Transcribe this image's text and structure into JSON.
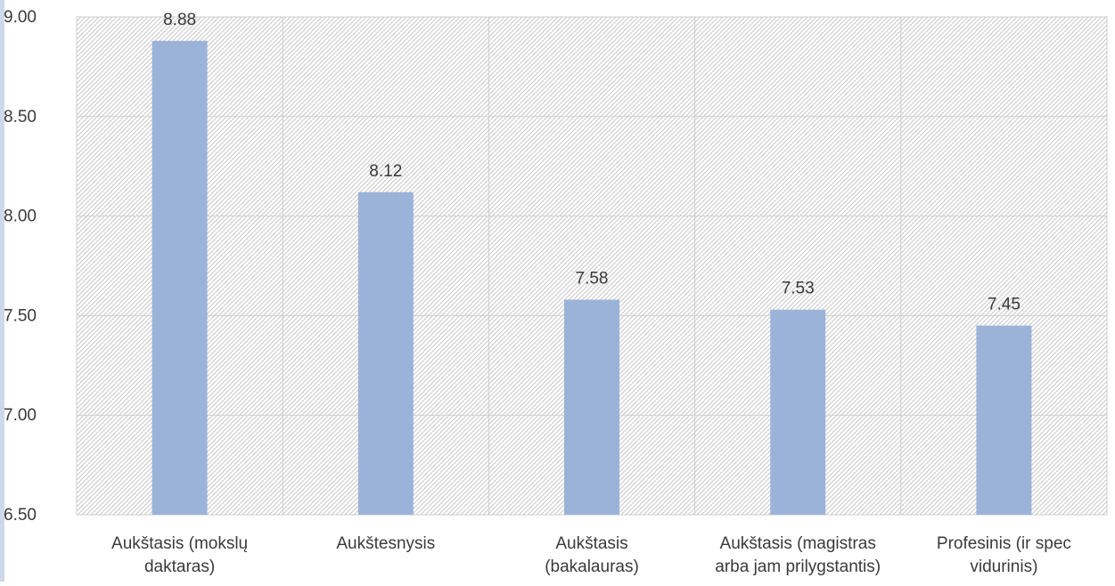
{
  "chart_data": {
    "type": "bar",
    "title": "",
    "xlabel": "",
    "ylabel": "",
    "categories": [
      [
        "Aukštasis (mokslų",
        "daktaras)"
      ],
      [
        "Aukštesnysis"
      ],
      [
        "Aukštasis",
        "(bakalauras)"
      ],
      [
        "Aukštasis (magistras",
        "arba jam prilygstantis)"
      ],
      [
        "Profesinis (ir spec",
        "vidurinis)"
      ]
    ],
    "values": [
      8.88,
      8.12,
      7.58,
      7.53,
      7.45
    ],
    "data_labels": [
      "8.88",
      "8.12",
      "7.58",
      "7.53",
      "7.45"
    ],
    "ylim": [
      6.5,
      9.0
    ],
    "yticks": [
      6.5,
      7.0,
      7.5,
      8.0,
      8.5,
      9.0
    ],
    "ytick_labels": [
      "6.50",
      "7.00",
      "7.50",
      "8.00",
      "8.50",
      "9.00"
    ],
    "grid": true,
    "bar_color": "#9bb3d8",
    "background_pattern": "diagonal-hatch"
  }
}
